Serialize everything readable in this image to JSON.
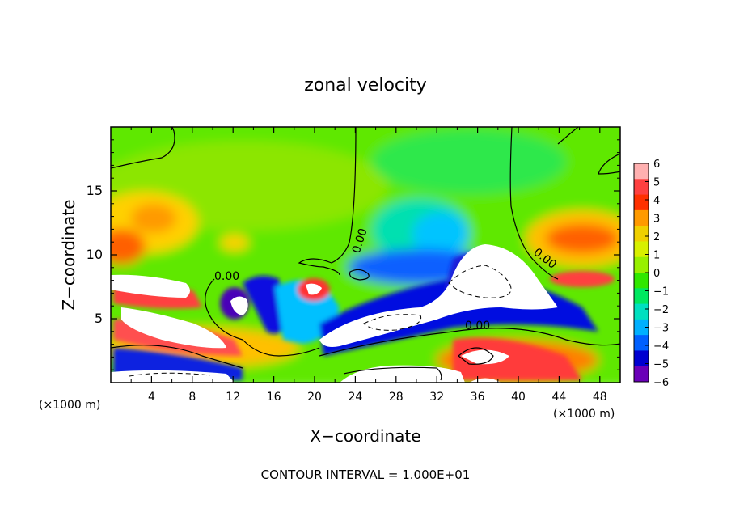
{
  "chart_data": {
    "type": "heatmap",
    "title": "zonal velocity",
    "xlabel": "X−coordinate",
    "ylabel": "Z−coordinate",
    "x_unit_left": "(×1000 m)",
    "x_unit_right": "(×1000 m)",
    "xlim": [
      0,
      50
    ],
    "ylim": [
      0,
      20
    ],
    "x_ticks": [
      4,
      8,
      12,
      16,
      20,
      24,
      28,
      32,
      36,
      40,
      44,
      48
    ],
    "x_tick_labels": [
      "4",
      "8",
      "12",
      "16",
      "20",
      "24",
      "28",
      "32",
      "36",
      "40",
      "44",
      "48"
    ],
    "y_ticks": [
      5,
      10,
      15
    ],
    "y_tick_labels": [
      "5",
      "10",
      "15"
    ],
    "colorbar": {
      "range": [
        -6,
        6
      ],
      "ticks": [
        6,
        5,
        4,
        3,
        2,
        1,
        0,
        -1,
        -2,
        -3,
        -4,
        -5,
        -6
      ],
      "tick_labels": [
        "6",
        "5",
        "4",
        "3",
        "2",
        "1",
        "0",
        "−1",
        "−2",
        "−3",
        "−4",
        "−5",
        "−6"
      ],
      "colors": [
        "#ffb0b0",
        "#ff4040",
        "#ff3000",
        "#ff9a00",
        "#f0d000",
        "#d8f000",
        "#98f000",
        "#30e800",
        "#00e860",
        "#00e0c0",
        "#00b0ff",
        "#0060ff",
        "#0000d0",
        "#6a00b8"
      ]
    },
    "contour_labels": [
      "0.00",
      "0.00",
      "0.00",
      "0.00"
    ],
    "annotation": "CONTOUR INTERVAL = 1.000E+01",
    "grid": false,
    "legend_position": "right"
  }
}
